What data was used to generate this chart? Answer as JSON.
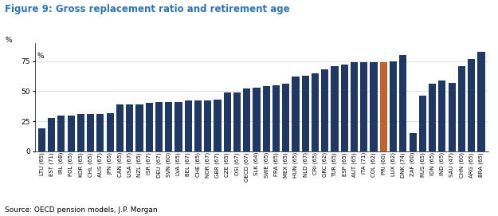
{
  "title": "Figure 9: Gross replacement ratio and retirement age",
  "source": "Source: OECD pension models, J.P. Morgan",
  "categories": [
    "LTU (65)",
    "EST (71)",
    "IRL (68)",
    "POL (65)",
    "KOR (65)",
    "CHL (65)",
    "AUS (67)",
    "JPN (65)",
    "CAN (65)",
    "USA (67)",
    "NZL (65)",
    "ISR (67)",
    "DEU (67)",
    "SVN (60)",
    "LVA (65)",
    "BEL (67)",
    "CHE (65)",
    "NOR (67)",
    "GBR (67)",
    "CZE (65)",
    "OSI (67)",
    "OECD (67)",
    "SLK (64)",
    "SWE (65)",
    "FRA (65)",
    "MEX (65)",
    "HUN (65)",
    "NLD (67)",
    "CRI (65)",
    "GRC (62)",
    "TUR (65)",
    "ESP (65)",
    "AUT (65)",
    "ITA (71)",
    "COL (62)",
    "PRI (60)",
    "LUX (62)",
    "DNK (74)",
    "ZAF (60)",
    "RUS (65)",
    "IDN (65)",
    "IND (65)",
    "SAU (47)",
    "CHN (60)",
    "ARG (65)",
    "BRA (65)"
  ],
  "values": [
    19,
    28,
    30,
    30,
    31,
    31,
    31,
    32,
    39,
    39,
    39,
    40,
    41,
    41,
    41,
    42,
    42,
    42,
    43,
    49,
    49,
    52,
    53,
    54,
    55,
    56,
    62,
    63,
    65,
    68,
    71,
    72,
    74,
    74,
    74,
    74,
    75,
    80,
    15,
    46,
    56,
    59,
    57,
    71,
    77,
    83
  ],
  "bar_color_default": "#1F3864",
  "bar_color_highlight": "#C0622B",
  "highlight_index": 35,
  "ylim": [
    0,
    90
  ],
  "yticks": [
    0,
    25,
    50,
    75
  ],
  "title_color": "#2E74B5",
  "title_fontsize": 8.5,
  "axis_fontsize": 6.5,
  "label_fontsize": 5.0,
  "source_fontsize": 6.5
}
